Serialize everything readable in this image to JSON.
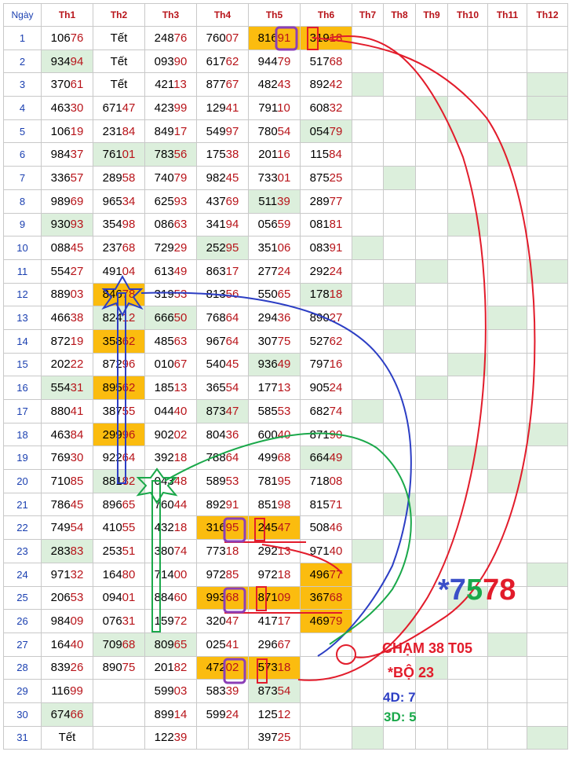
{
  "headers": [
    "Ngày",
    "Th1",
    "Th2",
    "Th3",
    "Th4",
    "Th5",
    "Th6",
    "Th7",
    "Th8",
    "Th9",
    "Th10",
    "Th11",
    "Th12"
  ],
  "rows": [
    {
      "day": "1",
      "vals": [
        "10676",
        "Tết",
        "24876",
        "76007",
        "81691",
        "31918"
      ]
    },
    {
      "day": "2",
      "vals": [
        "93494",
        "Tết",
        "09390",
        "61762",
        "94479",
        "51768"
      ]
    },
    {
      "day": "3",
      "vals": [
        "37061",
        "Tết",
        "42113",
        "87767",
        "48243",
        "89242"
      ]
    },
    {
      "day": "4",
      "vals": [
        "46330",
        "67147",
        "42399",
        "12941",
        "79110",
        "60832"
      ]
    },
    {
      "day": "5",
      "vals": [
        "10619",
        "23184",
        "84917",
        "54997",
        "78054",
        "05479"
      ]
    },
    {
      "day": "6",
      "vals": [
        "98437",
        "76101",
        "78356",
        "17538",
        "20116",
        "11584"
      ]
    },
    {
      "day": "7",
      "vals": [
        "33657",
        "28958",
        "74079",
        "98245",
        "73301",
        "87525"
      ]
    },
    {
      "day": "8",
      "vals": [
        "98969",
        "96534",
        "62593",
        "43769",
        "51139",
        "28977"
      ]
    },
    {
      "day": "9",
      "vals": [
        "93093",
        "35498",
        "08663",
        "34194",
        "05659",
        "08181"
      ]
    },
    {
      "day": "10",
      "vals": [
        "08845",
        "23768",
        "72929",
        "25295",
        "35106",
        "08391"
      ]
    },
    {
      "day": "11",
      "vals": [
        "55427",
        "49104",
        "61349",
        "86317",
        "27724",
        "29224"
      ]
    },
    {
      "day": "12",
      "vals": [
        "88903",
        "84678",
        "31953",
        "81356",
        "55065",
        "17818"
      ]
    },
    {
      "day": "13",
      "vals": [
        "46638",
        "82412",
        "66650",
        "76864",
        "29436",
        "89027"
      ]
    },
    {
      "day": "14",
      "vals": [
        "87219",
        "35862",
        "48563",
        "96764",
        "30775",
        "52762"
      ]
    },
    {
      "day": "15",
      "vals": [
        "20222",
        "87296",
        "01067",
        "54045",
        "93649",
        "79716"
      ]
    },
    {
      "day": "16",
      "vals": [
        "55431",
        "89562",
        "18513",
        "36554",
        "17713",
        "90524"
      ]
    },
    {
      "day": "17",
      "vals": [
        "88041",
        "38755",
        "04440",
        "87347",
        "58553",
        "68274"
      ]
    },
    {
      "day": "18",
      "vals": [
        "46384",
        "29996",
        "90202",
        "80436",
        "60040",
        "87190"
      ]
    },
    {
      "day": "19",
      "vals": [
        "76930",
        "92264",
        "39218",
        "78864",
        "49968",
        "66449"
      ]
    },
    {
      "day": "20",
      "vals": [
        "71085",
        "88182",
        "04348",
        "58953",
        "78195",
        "71808"
      ]
    },
    {
      "day": "21",
      "vals": [
        "78645",
        "89665",
        "76044",
        "89291",
        "85198",
        "81571"
      ]
    },
    {
      "day": "22",
      "vals": [
        "74954",
        "41055",
        "43218",
        "31695",
        "24547",
        "50846"
      ]
    },
    {
      "day": "23",
      "vals": [
        "28383",
        "25351",
        "38074",
        "77318",
        "29213",
        "97140"
      ]
    },
    {
      "day": "24",
      "vals": [
        "97132",
        "16480",
        "71400",
        "97285",
        "97218",
        "49677"
      ]
    },
    {
      "day": "25",
      "vals": [
        "20653",
        "09401",
        "88460",
        "99368",
        "87109",
        "36768"
      ]
    },
    {
      "day": "26",
      "vals": [
        "98409",
        "07631",
        "15972",
        "32047",
        "41717",
        "46979"
      ]
    },
    {
      "day": "27",
      "vals": [
        "16440",
        "70968",
        "80965",
        "02541",
        "29667",
        ""
      ]
    },
    {
      "day": "28",
      "vals": [
        "83926",
        "89075",
        "20182",
        "47202",
        "57318",
        ""
      ]
    },
    {
      "day": "29",
      "vals": [
        "11699",
        "",
        "59903",
        "58339",
        "87354",
        ""
      ]
    },
    {
      "day": "30",
      "vals": [
        "67466",
        "",
        "89914",
        "59924",
        "12512",
        ""
      ]
    },
    {
      "day": "31",
      "vals": [
        "Tết",
        "",
        "12239",
        "",
        "39725",
        ""
      ]
    }
  ],
  "highlights": {
    "orange": [
      "1-5",
      "1-6",
      "12-2",
      "14-2",
      "16-2",
      "18-2",
      "22-4",
      "22-5",
      "24-6",
      "25-4",
      "25-5",
      "25-6",
      "26-6",
      "28-4",
      "28-5"
    ],
    "green": [
      "2-1",
      "3-7",
      "3-12",
      "4-9",
      "4-12",
      "5-6",
      "5-10",
      "6-2",
      "6-3",
      "6-11",
      "7-8",
      "8-5",
      "9-1",
      "9-10",
      "10-4",
      "10-7",
      "11-9",
      "11-12",
      "12-6",
      "12-8",
      "13-2",
      "13-3",
      "13-11",
      "14-8",
      "15-5",
      "15-10",
      "16-1",
      "16-9",
      "17-4",
      "17-7",
      "18-12",
      "19-6",
      "19-10",
      "20-2",
      "20-11",
      "21-8",
      "22-9",
      "23-1",
      "23-7",
      "24-12",
      "25-10",
      "26-8",
      "27-2",
      "27-3",
      "27-11",
      "28-9",
      "29-5",
      "30-1",
      "31-7",
      "31-12"
    ]
  },
  "annotations": {
    "big_pre": "*",
    "big_1": "7",
    "big_2": "5",
    "big_3": "78",
    "cham": "CHẠM 38 T05",
    "bo": "*BỘ 23",
    "d4": "4D: 7",
    "d3": "3D: 5"
  },
  "colors": {
    "header_text": "#b8141a",
    "day_text": "#1a3fb0",
    "tail_digits": "#b8141a",
    "green_cell": "#dcefdc",
    "orange_cell": "#fbbc0f",
    "red_line": "#e21c2b",
    "blue_line": "#2c3ec4",
    "green_line": "#1aa84a",
    "purple_box": "#8b3fb8"
  }
}
